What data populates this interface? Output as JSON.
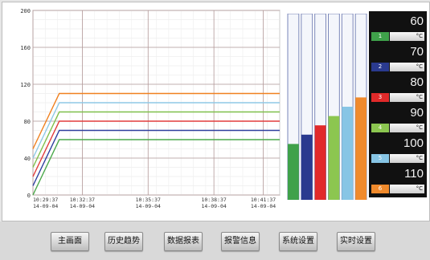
{
  "chart_data": {
    "type": "line",
    "ylim": [
      0,
      200
    ],
    "y_ticks": [
      "0",
      "40",
      "80",
      "120",
      "160",
      "200"
    ],
    "x_ticks": [
      {
        "time": "10:29:37",
        "date": "14-09-04"
      },
      {
        "time": "10:32:37",
        "date": "14-09-04"
      },
      {
        "time": "10:35:37",
        "date": "14-09-04"
      },
      {
        "time": "10:38:37",
        "date": "14-09-04"
      },
      {
        "time": "10:41:37",
        "date": "14-09-04"
      }
    ],
    "x_domain": [
      0,
      15
    ],
    "x_tick_minutes": [
      0,
      3,
      7,
      11,
      14
    ],
    "grid": true,
    "series": [
      {
        "color": "#e23b3b",
        "x": [
          0,
          1.6,
          15
        ],
        "values": [
          20,
          80,
          80
        ]
      },
      {
        "color": "#2e3f9e",
        "x": [
          0,
          1.6,
          15
        ],
        "values": [
          10,
          70,
          70
        ]
      },
      {
        "color": "#f0801f",
        "x": [
          0,
          1.6,
          15
        ],
        "values": [
          50,
          110,
          110
        ]
      },
      {
        "color": "#7fbf4a",
        "x": [
          0,
          1.6,
          15
        ],
        "values": [
          30,
          90,
          90
        ]
      },
      {
        "color": "#8fc8e6",
        "x": [
          0,
          1.6,
          15
        ],
        "values": [
          40,
          100,
          100
        ]
      },
      {
        "color": "#4aa84a",
        "x": [
          0,
          1.6,
          15
        ],
        "values": [
          0,
          60,
          60
        ]
      }
    ]
  },
  "bar_gauges": {
    "max": 200,
    "bars": [
      {
        "color": "#3fa14a",
        "value": 60
      },
      {
        "color": "#2a3a8f",
        "value": 70
      },
      {
        "color": "#e12a2a",
        "value": 80
      },
      {
        "color": "#8cc650",
        "value": 90
      },
      {
        "color": "#87c5e5",
        "value": 100
      },
      {
        "color": "#f08a2c",
        "value": 110
      }
    ]
  },
  "readings": [
    {
      "value": "60",
      "index": "1",
      "unit": "°C",
      "color": "#3fa14a"
    },
    {
      "value": "70",
      "index": "2",
      "unit": "°C",
      "color": "#2a3a8f"
    },
    {
      "value": "80",
      "index": "3",
      "unit": "°C",
      "color": "#e12a2a"
    },
    {
      "value": "90",
      "index": "4",
      "unit": "°C",
      "color": "#8cc650"
    },
    {
      "value": "100",
      "index": "5",
      "unit": "°C",
      "color": "#87c5e5"
    },
    {
      "value": "110",
      "index": "6",
      "unit": "°C",
      "color": "#f08a2c"
    }
  ],
  "footer": {
    "buttons": [
      {
        "label": "主画面"
      },
      {
        "label": "历史趋势"
      },
      {
        "label": "数据报表"
      },
      {
        "label": "报警信息"
      },
      {
        "label": "系统设置"
      },
      {
        "label": "实时设置"
      }
    ]
  }
}
